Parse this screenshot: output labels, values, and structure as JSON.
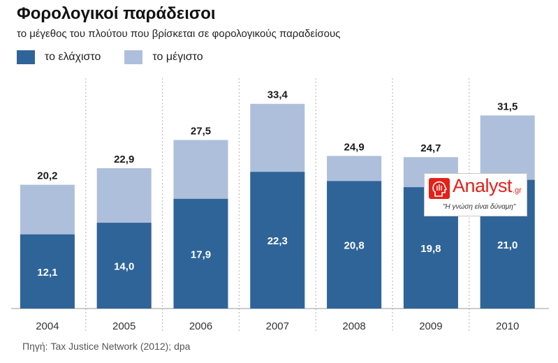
{
  "header": {
    "title": "Φορολογικοί παράδεισοι",
    "subtitle": "το μέγεθος του πλούτου που βρίσκεται σε φορολογικούς παραδείσους"
  },
  "legend": {
    "min_label": "το ελάχιστο",
    "max_label": "το μέγιστο"
  },
  "colors": {
    "min": "#2f6498",
    "max": "#aebfdb",
    "grid": "#bdbdbd",
    "brand": "#e32119"
  },
  "chart_data": {
    "type": "bar",
    "categories": [
      "2004",
      "2005",
      "2006",
      "2007",
      "2008",
      "2009",
      "2010"
    ],
    "series": [
      {
        "name": "το ελάχιστο",
        "values": [
          12.1,
          14.0,
          17.9,
          22.3,
          20.8,
          19.8,
          21.0
        ],
        "labels": [
          "12,1",
          "14,0",
          "17,9",
          "22,3",
          "20,8",
          "19,8",
          "21,0"
        ]
      },
      {
        "name": "το μέγιστο",
        "values": [
          20.2,
          22.9,
          27.5,
          33.4,
          24.9,
          24.7,
          31.5
        ],
        "labels": [
          "20,2",
          "22,9",
          "27,5",
          "33,4",
          "24,9",
          "24,7",
          "31,5"
        ]
      }
    ],
    "ylim": [
      0,
      40
    ],
    "grid": "vertical dotted separators",
    "legend_position": "top-left"
  },
  "source": "Πηγή: Tax Justice Network (2012); dpa",
  "logo": {
    "brand": "Analyst",
    "domain": ".gr",
    "slogan": "\"Η γνώση είναι δύναμη\"",
    "icon": "head-profile-icon"
  }
}
